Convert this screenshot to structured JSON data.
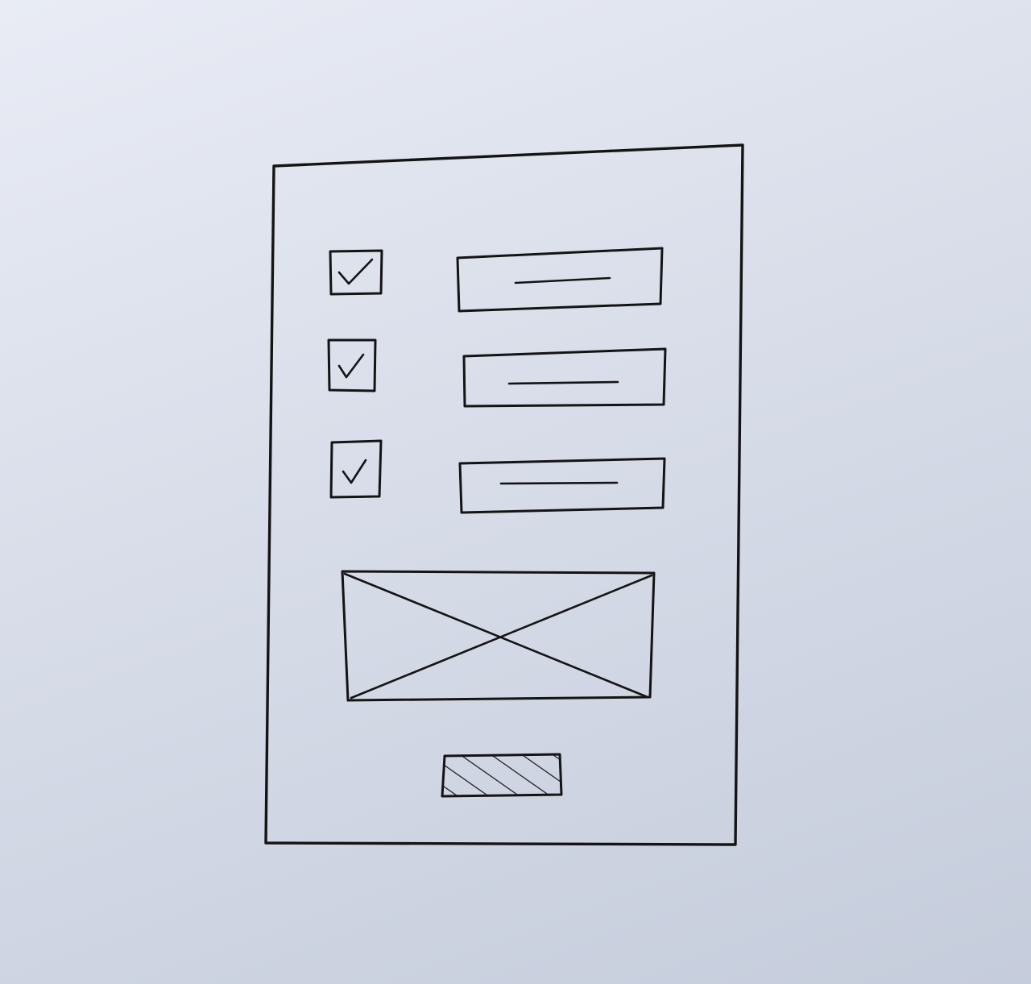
{
  "sketch": {
    "ink_color": "#141414",
    "paper_color": "#dde1ec",
    "rows": [
      {
        "checkbox": {
          "checked": true,
          "icon": "checkmark-icon"
        },
        "field": {
          "content": "text-line"
        }
      },
      {
        "checkbox": {
          "checked": true,
          "icon": "checkmark-icon"
        },
        "field": {
          "content": "text-line"
        }
      },
      {
        "checkbox": {
          "checked": true,
          "icon": "checkmark-icon"
        },
        "field": {
          "content": "text-line"
        }
      }
    ],
    "image_placeholder": {
      "icon": "image-placeholder-cross"
    },
    "button": {
      "fill": "hatched"
    }
  }
}
